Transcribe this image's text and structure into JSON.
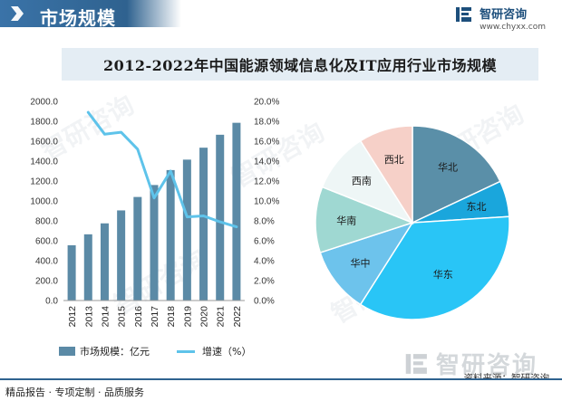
{
  "header": {
    "section_title": "市场规模",
    "logo_name": "智研咨询",
    "logo_url": "www.chyxx.com"
  },
  "watermark": "智研咨询",
  "chart_data": [
    {
      "type": "bar",
      "title": "2012-2022年中国能源领域信息化及IT应用行业市场规模",
      "categories": [
        "2012",
        "2013",
        "2014",
        "2015",
        "2016",
        "2017",
        "2018",
        "2019",
        "2020",
        "2021",
        "2022"
      ],
      "y_ticks": [
        "0.0",
        "200.0",
        "400.0",
        "600.0",
        "800.0",
        "1000.0",
        "1200.0",
        "1400.0",
        "1600.0",
        "1800.0",
        "2000.0"
      ],
      "y2_ticks": [
        "0.0%",
        "2.0%",
        "4.0%",
        "6.0%",
        "8.0%",
        "10.0%",
        "12.0%",
        "14.0%",
        "16.0%",
        "18.0%",
        "20.0%"
      ],
      "ylim": [
        0,
        2000
      ],
      "y2lim": [
        0,
        20
      ],
      "series": [
        {
          "name": "市场规模：亿元",
          "type": "bar",
          "color": "#5b8aa6",
          "values": [
            555,
            665,
            775,
            905,
            1040,
            1160,
            1310,
            1415,
            1535,
            1665,
            1785
          ]
        },
        {
          "name": "增速（%）",
          "type": "line",
          "axis": "right",
          "color": "#5ec3ea",
          "values": [
            null,
            18.9,
            16.7,
            16.9,
            15.2,
            10.3,
            13.0,
            8.4,
            8.5,
            7.9,
            7.4
          ]
        }
      ],
      "legend": "bottom-left",
      "grid": false
    },
    {
      "type": "pie",
      "labels": [
        "华北",
        "东北",
        "华东",
        "华中",
        "华南",
        "西南",
        "西北"
      ],
      "values": [
        18,
        6,
        35,
        11,
        11,
        10,
        9
      ],
      "colors": [
        "#5a8fa8",
        "#1aa6dc",
        "#29c5f6",
        "#6dc3ec",
        "#9fd8d2",
        "#eef6f6",
        "#f6d0c8"
      ]
    }
  ],
  "legend": {
    "bar_label": "市场规模：亿元",
    "line_label": "增速（%）"
  },
  "footer": {
    "left_text": "精品报告 · 专项定制 · 品质服务",
    "source": "资料来源：智研咨询"
  }
}
